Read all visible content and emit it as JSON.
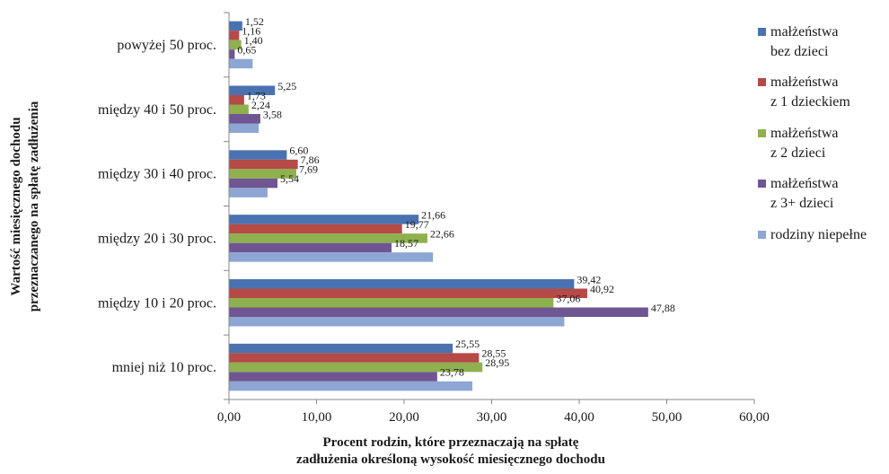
{
  "chart_data": {
    "type": "bar",
    "orientation": "horizontal",
    "categories": [
      "mniej niż 10 proc.",
      "między 10 i 20 proc.",
      "między 20 i 30 proc.",
      "między 30 i 40 proc.",
      "między 40 i 50 proc.",
      "powyżej 50 proc."
    ],
    "series": [
      {
        "name": "małżeństwa bez dzieci",
        "name_lines": [
          "małżeństwa",
          "bez dzieci"
        ],
        "color": "#4A72B0",
        "values": [
          25.55,
          39.42,
          21.66,
          6.6,
          5.25,
          1.52
        ],
        "labels": [
          "25,55",
          "39,42",
          "21,66",
          "6,60",
          "5,25",
          "1,52"
        ]
      },
      {
        "name": "małżeństwa z 1 dzieckiem",
        "name_lines": [
          "małżeństwa",
          "z 1 dzieckiem"
        ],
        "color": "#B54A47",
        "values": [
          28.55,
          40.92,
          19.77,
          7.86,
          1.73,
          1.16
        ],
        "labels": [
          "28,55",
          "40,92",
          "19,77",
          "7,86",
          "1,73",
          "1,16"
        ]
      },
      {
        "name": "małżeństwa z 2 dzieci",
        "name_lines": [
          "małżeństwa",
          "z 2 dzieci"
        ],
        "color": "#8FB04F",
        "values": [
          28.95,
          37.06,
          22.66,
          7.69,
          2.24,
          1.4
        ],
        "labels": [
          "28,95",
          "37,06",
          "22,66",
          "7,69",
          "2,24",
          "1,40"
        ]
      },
      {
        "name": "małżeństwa z 3+ dzieci",
        "name_lines": [
          "małżeństwa",
          "z 3+ dzieci"
        ],
        "color": "#6F5592",
        "values": [
          23.78,
          47.88,
          18.57,
          5.54,
          3.58,
          0.65
        ],
        "labels": [
          "23,78",
          "47,88",
          "18,57",
          "5,54",
          "3,58",
          "0,65"
        ]
      },
      {
        "name": "rodziny niepełne",
        "name_lines": [
          "rodziny niepełne"
        ],
        "color": "#8DA6D3",
        "values": [
          27.8,
          38.3,
          23.3,
          4.4,
          3.4,
          2.7
        ],
        "labels": null
      }
    ],
    "xlim": [
      0,
      60
    ],
    "xticks": [
      0,
      10,
      20,
      30,
      40,
      50,
      60
    ],
    "xtick_labels": [
      "0,00",
      "10,00",
      "20,00",
      "30,00",
      "40,00",
      "50,00",
      "60,00"
    ],
    "xlabel_lines": [
      "Procent rodzin, które przeznaczają na spłatę",
      "zadłużenia określoną wysokość miesięcznego dochodu"
    ],
    "ylabel_lines": [
      "Wartość miesięcznego dochodu",
      "przeznaczanego na spłatę zadłużenia"
    ],
    "grid": false,
    "legend_position": "right"
  }
}
